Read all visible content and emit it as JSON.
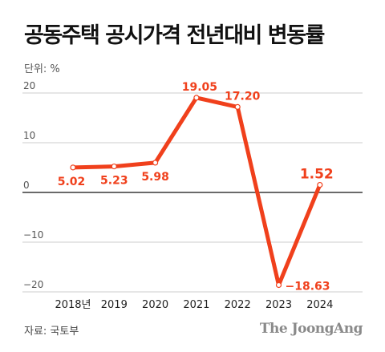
{
  "title": "공동주택 공시가격 전년대비 변동률",
  "unit_label": "단위: %",
  "source": "자료: 국토부",
  "logo_text": "The JoongAng",
  "chart_data": {
    "type": "line",
    "categories": [
      "2018년",
      "2019",
      "2020",
      "2021",
      "2022",
      "2023",
      "2024"
    ],
    "values": [
      5.02,
      5.23,
      5.98,
      19.05,
      17.2,
      -18.63,
      1.52
    ],
    "data_labels": [
      "5.02",
      "5.23",
      "5.98",
      "19.05",
      "17.20",
      "−18.63",
      "1.52"
    ],
    "y_ticks": [
      20,
      10,
      0,
      -10,
      -20
    ],
    "y_tick_labels": [
      "20",
      "10",
      "0",
      "−10",
      "−20"
    ],
    "ylim": [
      -20,
      20
    ],
    "grid": true,
    "line_color": "#f0401c",
    "zero_line_color": "#111111",
    "grid_color": "#bdbdbd"
  }
}
